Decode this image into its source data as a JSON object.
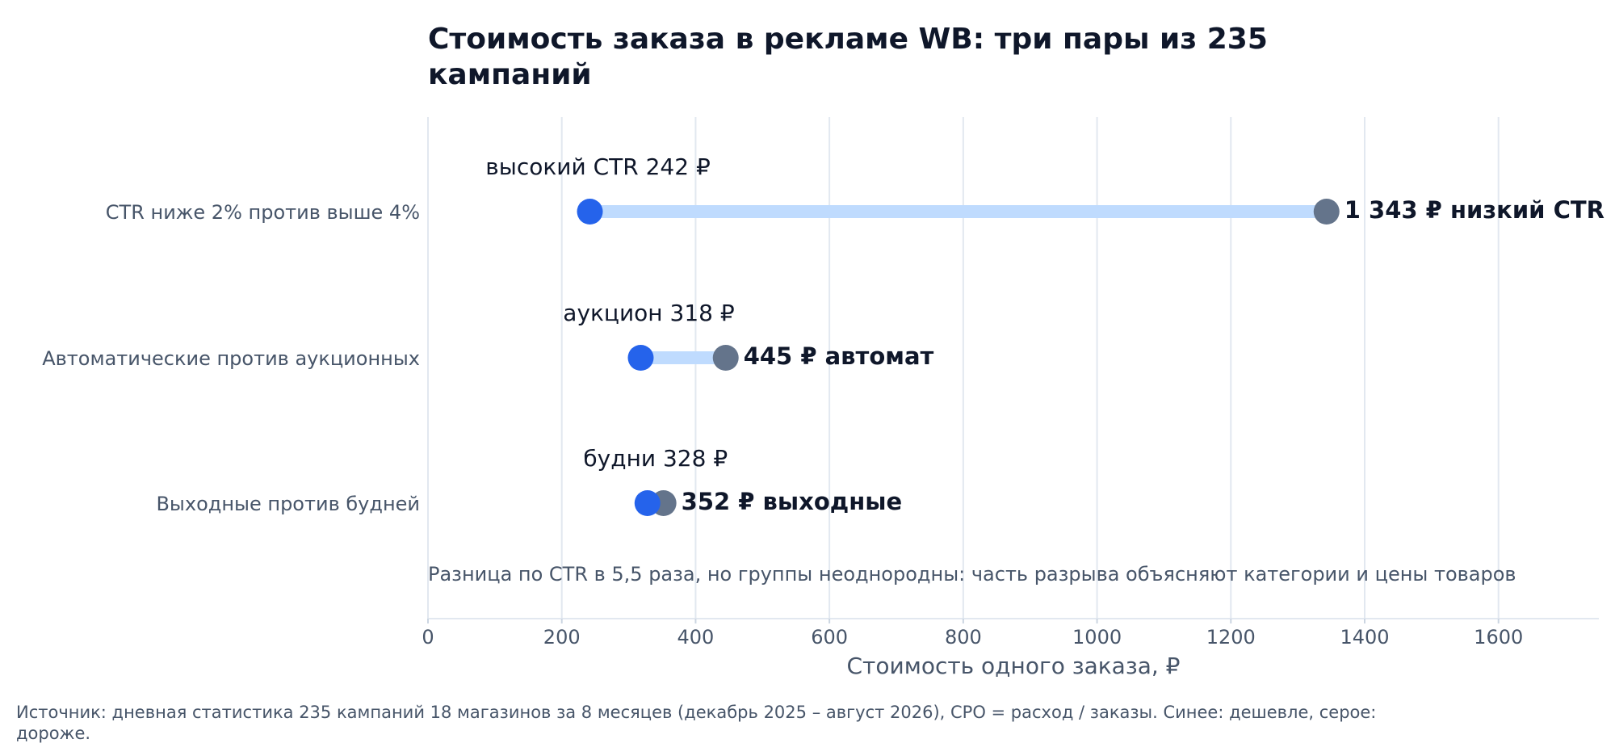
{
  "chart_data": {
    "type": "dumbbell",
    "title_lines": [
      "Стоимость заказа в рекламе WB: три пары из 235",
      "кампаний"
    ],
    "xlabel": "Стоимость одного заказа, ₽",
    "xlim": [
      0,
      1750
    ],
    "xticks": [
      0,
      200,
      400,
      600,
      800,
      1000,
      1200,
      1400,
      1600
    ],
    "grid": true,
    "rows": [
      {
        "label": "CTR ниже 2% против выше 4%",
        "low": 242,
        "high": 1343,
        "low_label": "высокий CTR 242 ₽",
        "high_label": "1 343 ₽ низкий CTR"
      },
      {
        "label": "Автоматические против аукционных",
        "low": 318,
        "high": 445,
        "low_label": "аукцион 318 ₽",
        "high_label": "445 ₽ автомат"
      },
      {
        "label": "Выходные против будней",
        "low": 328,
        "high": 352,
        "low_label": "будни 328 ₽",
        "high_label": "352 ₽ выходные"
      }
    ],
    "annotation": "Разница по CTR в 5,5 раза, но группы неоднородны: часть разрыва объясняют категории и цены товаров",
    "source_lines": [
      "Источник: дневная статистика 235 кампаний 18 магазинов за 8 месяцев (декабрь 2025 – август 2026), CPO = расход / заказы. Синее: дешевле, серое:",
      "дороже."
    ],
    "colors": {
      "low": "#2563eb",
      "high": "#64748b",
      "bar": "#bfdbfe",
      "grid": "#e2e8f0"
    }
  }
}
